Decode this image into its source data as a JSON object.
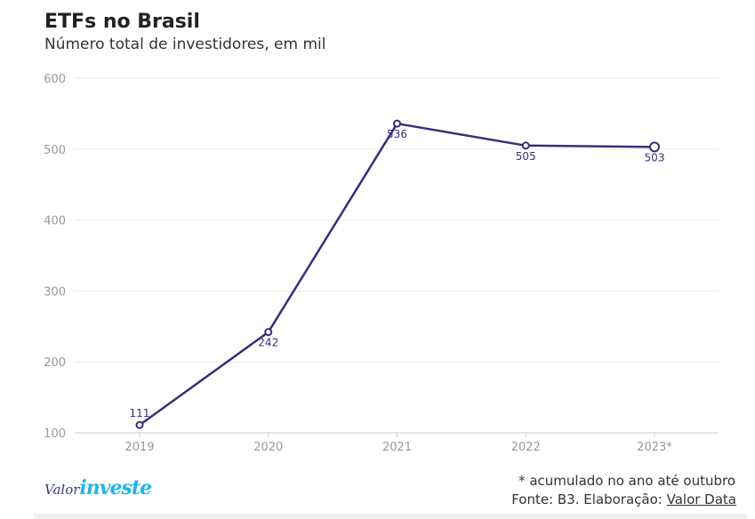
{
  "chart_data": {
    "type": "line",
    "title": "ETFs no Brasil",
    "subtitle": "Número total de investidores, em mil",
    "categories": [
      "2019",
      "2020",
      "2021",
      "2022",
      "2023*"
    ],
    "series": [
      {
        "values": [
          111,
          242,
          536,
          505,
          503
        ]
      }
    ],
    "data_labels": [
      "111",
      "242",
      "536",
      "505",
      "503"
    ],
    "yticks": [
      "100",
      "200",
      "300",
      "400",
      "500",
      "600"
    ],
    "ylim": [
      100,
      600
    ],
    "grid": "horizontal",
    "line_color": "#3b2d7a"
  },
  "footer": {
    "footnote": "* acumulado no ano até outubro",
    "source_prefix": "Fonte: B3. Elaboração: ",
    "source_link": "Valor Data"
  },
  "logo": {
    "part1": "Valor",
    "part2": "investe"
  }
}
